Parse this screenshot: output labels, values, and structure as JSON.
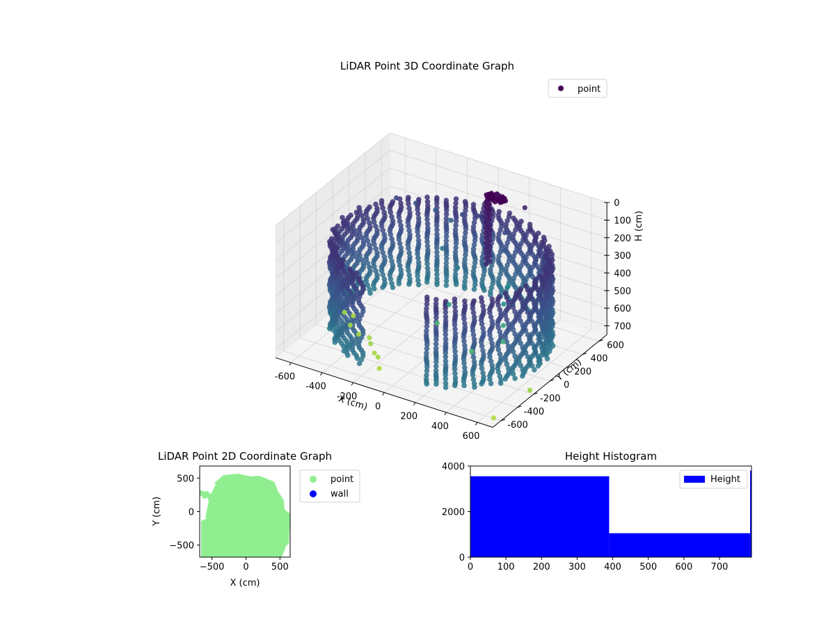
{
  "chart_data": [
    {
      "type": "scatter",
      "title": "LiDAR Point 3D Coordinate Graph",
      "xlabel": "X (cm)",
      "ylabel": "Y (cm)",
      "zlabel": "H (cm)",
      "xlim": [
        -700,
        700
      ],
      "ylim": [
        -700,
        700
      ],
      "zlim": [
        0,
        750
      ],
      "z_inverted": true,
      "x_ticks": [
        -600,
        -400,
        -200,
        0,
        200,
        400,
        600
      ],
      "y_ticks": [
        -600,
        -400,
        -200,
        0,
        200,
        400,
        600
      ],
      "z_ticks": [
        0,
        100,
        200,
        300,
        400,
        500,
        600,
        700
      ],
      "legend": {
        "placement": "top-right",
        "entries": [
          "point"
        ]
      },
      "colormap": "viridis",
      "grid": true,
      "wall_radius": 620,
      "wall_angle_range_deg": [
        -70,
        250
      ],
      "wall_height_range": [
        200,
        700
      ],
      "series": [
        {
          "name": "point",
          "color": "#440154",
          "points": [
            {
              "x": 100,
              "y": 500,
              "h": 50
            },
            {
              "x": 250,
              "y": 550,
              "h": 100
            },
            {
              "x": -500,
              "y": 400,
              "h": 200
            },
            {
              "x": -400,
              "y": 450,
              "h": 220
            },
            {
              "x": -300,
              "y": 500,
              "h": 250
            },
            {
              "x": -200,
              "y": 500,
              "h": 280
            },
            {
              "x": -100,
              "y": 450,
              "h": 200
            },
            {
              "x": 0,
              "y": 450,
              "h": 180
            },
            {
              "x": 50,
              "y": 400,
              "h": 150
            },
            {
              "x": 100,
              "y": 350,
              "h": 120
            },
            {
              "x": 150,
              "y": 300,
              "h": 120
            },
            {
              "x": 200,
              "y": 400,
              "h": 200
            },
            {
              "x": 250,
              "y": 300,
              "h": 250
            },
            {
              "x": -150,
              "y": 300,
              "h": 350
            },
            {
              "x": 0,
              "y": 200,
              "h": 380
            },
            {
              "x": 300,
              "y": 250,
              "h": 420
            },
            {
              "x": 350,
              "y": 100,
              "h": 450
            },
            {
              "x": 50,
              "y": 0,
              "h": 500
            },
            {
              "x": 400,
              "y": 0,
              "h": 520
            },
            {
              "x": 450,
              "y": -100,
              "h": 560
            },
            {
              "x": 0,
              "y": -50,
              "h": 600
            },
            {
              "x": 300,
              "y": -200,
              "h": 620
            },
            {
              "x": -650,
              "y": 50,
              "h": 760
            },
            {
              "x": -560,
              "y": -50,
              "h": 770
            },
            {
              "x": -480,
              "y": -100,
              "h": 780
            },
            {
              "x": -400,
              "y": -120,
              "h": 770
            },
            {
              "x": -350,
              "y": -200,
              "h": 760
            },
            {
              "x": -300,
              "y": -250,
              "h": 780
            },
            {
              "x": -250,
              "y": -300,
              "h": 770
            },
            {
              "x": 650,
              "y": -150,
              "h": 760
            },
            {
              "x": -620,
              "y": 100,
              "h": 790
            },
            {
              "x": -200,
              "y": -380,
              "h": 790
            },
            {
              "x": 600,
              "y": -500,
              "h": 800
            }
          ]
        }
      ]
    },
    {
      "type": "scatter",
      "title": "LiDAR Point 2D Coordinate Graph",
      "xlabel": "X (cm)",
      "ylabel": "Y (cm)",
      "xlim": [
        -680,
        650
      ],
      "ylim": [
        -680,
        680
      ],
      "x_ticks": [
        -500,
        0,
        500
      ],
      "y_ticks": [
        -500,
        0,
        500
      ],
      "legend": {
        "placement": "right-outside",
        "entries": [
          "point",
          "wall"
        ]
      },
      "series": [
        {
          "name": "point",
          "color": "#90ee90"
        },
        {
          "name": "wall",
          "color": "#0000ff"
        }
      ]
    },
    {
      "type": "bar",
      "title": "Height Histogram",
      "xlim": [
        0,
        790
      ],
      "ylim": [
        0,
        4000
      ],
      "x_ticks": [
        0,
        100,
        200,
        300,
        400,
        500,
        600,
        700
      ],
      "y_ticks": [
        0,
        2000,
        4000
      ],
      "legend": {
        "placement": "top-right",
        "entries": [
          "Height"
        ]
      },
      "series": [
        {
          "name": "Height",
          "color": "#0000ff",
          "bins": [
            {
              "from": 0,
              "to": 390,
              "count": 3550
            },
            {
              "from": 390,
              "to": 786,
              "count": 1050
            },
            {
              "from": 786,
              "to": 790,
              "count": 3800
            }
          ]
        }
      ]
    }
  ]
}
